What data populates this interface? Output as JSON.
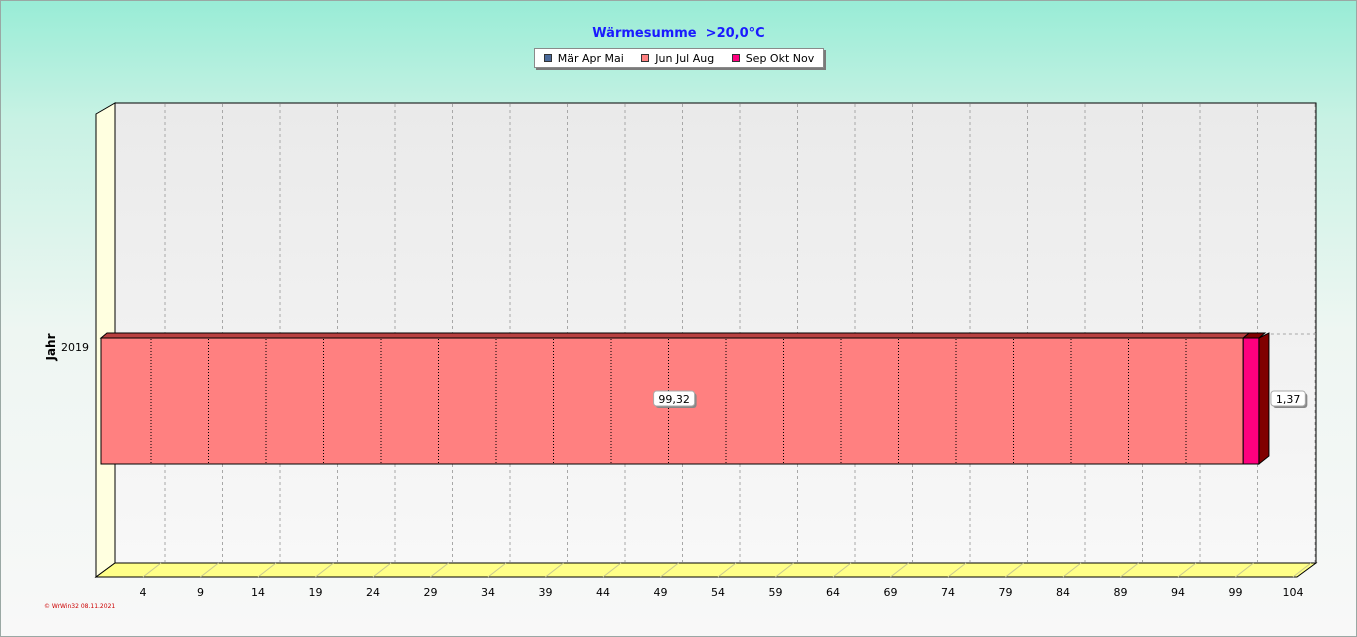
{
  "chart_data": {
    "type": "bar",
    "orientation": "horizontal",
    "stacked": true,
    "title": "Wärmesumme  >20,0°C",
    "ylabel": "Jahr",
    "xlabel": "",
    "categories": [
      "2019"
    ],
    "series": [
      {
        "name": "Mär Apr Mai",
        "values": [
          0
        ],
        "color": "#4a6a9a"
      },
      {
        "name": "Jun Jul Aug",
        "values": [
          99.32
        ],
        "color": "#ff8080"
      },
      {
        "name": "Sep Okt Nov",
        "values": [
          1.37
        ],
        "color": "#ff007f"
      }
    ],
    "data_labels": [
      "99,32",
      "1,37"
    ],
    "xticks": [
      4,
      9,
      14,
      19,
      24,
      29,
      34,
      39,
      44,
      49,
      54,
      59,
      64,
      69,
      74,
      79,
      84,
      89,
      94,
      99,
      104
    ],
    "xlim": [
      0,
      104
    ],
    "grid": true,
    "legend_position": "top-center"
  },
  "footer": "© WrWin32  08.11.2021"
}
